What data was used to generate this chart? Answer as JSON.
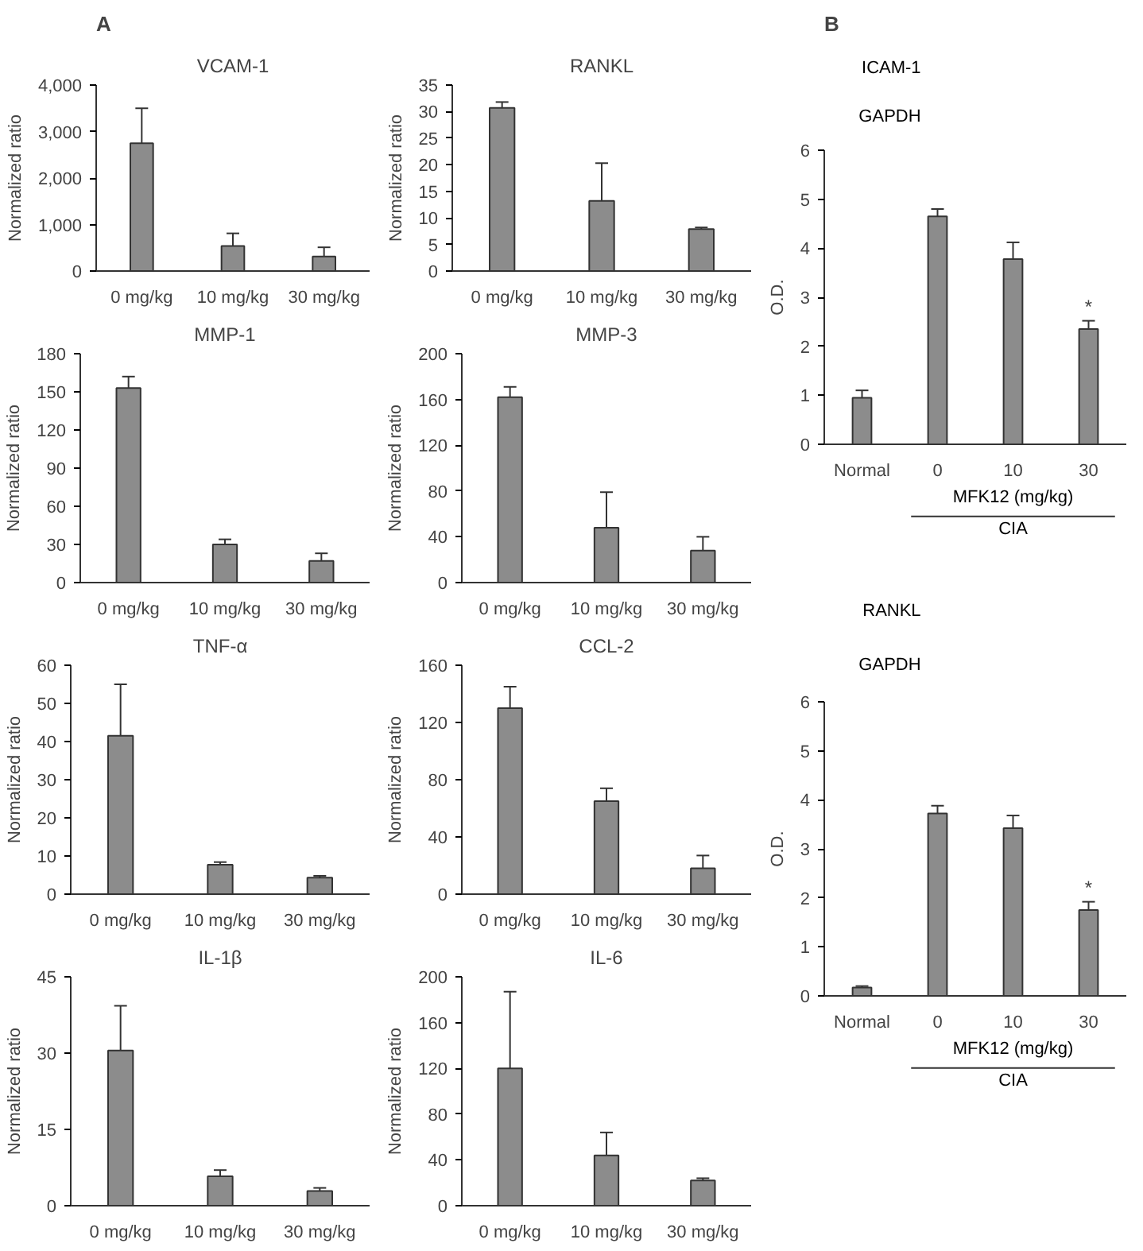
{
  "chart_data": [
    {
      "type": "bar",
      "title": "VCAM-1",
      "ylabel": "Normalized ratio",
      "categories": [
        "0 mg/kg",
        "10 mg/kg",
        "30 mg/kg"
      ],
      "values": [
        2750,
        540,
        310
      ],
      "errors": [
        [
          2750,
          3500
        ],
        [
          540,
          810
        ],
        [
          310,
          510
        ]
      ],
      "color": "#8c8c8c",
      "ylim": [
        0,
        4000
      ],
      "yticks": [
        0,
        {
          "value": 1000,
          "label": "1,000"
        },
        {
          "value": 2000,
          "label": "2,000"
        },
        {
          "value": 3000,
          "label": "3,000"
        },
        {
          "value": 4000,
          "label": "4,000"
        }
      ],
      "annotations": [
        "A"
      ]
    },
    {
      "type": "bar",
      "title": "RANKL",
      "ylabel": "Normalized ratio",
      "categories": [
        "0 mg/kg",
        "10 mg/kg",
        "30 mg/kg"
      ],
      "values": [
        30.7,
        13.2,
        7.9
      ],
      "errors": [
        [
          30.7,
          31.8
        ],
        [
          13.2,
          20.3
        ],
        [
          7.9,
          8.2
        ]
      ],
      "color": "#8c8c8c",
      "ylim": [
        0,
        35
      ],
      "yticks": [
        0,
        5,
        10,
        15,
        20,
        25,
        30,
        35
      ]
    },
    {
      "type": "bar",
      "title": "MMP-1",
      "ylabel": "Normalized ratio",
      "categories": [
        "0 mg/kg",
        "10 mg/kg",
        "30 mg/kg"
      ],
      "values": [
        153,
        30,
        17
      ],
      "errors": [
        [
          153,
          162
        ],
        [
          30,
          34
        ],
        [
          17,
          23
        ]
      ],
      "color": "#8c8c8c",
      "ylim": [
        0,
        180
      ],
      "yticks": [
        0,
        30,
        60,
        90,
        120,
        150,
        180
      ]
    },
    {
      "type": "bar",
      "title": "MMP-3",
      "ylabel": "Normalized ratio",
      "categories": [
        "0 mg/kg",
        "10 mg/kg",
        "30 mg/kg"
      ],
      "values": [
        162,
        48,
        28
      ],
      "errors": [
        [
          162,
          171
        ],
        [
          48,
          79
        ],
        [
          28,
          40
        ]
      ],
      "color": "#8c8c8c",
      "ylim": [
        0,
        200
      ],
      "yticks": [
        0,
        40,
        80,
        120,
        160,
        200
      ]
    },
    {
      "type": "bar",
      "title": "TNF-α",
      "ylabel": "Normalized ratio",
      "categories": [
        "0 mg/kg",
        "10 mg/kg",
        "30 mg/kg"
      ],
      "values": [
        41.5,
        7.7,
        4.3
      ],
      "errors": [
        [
          41.5,
          55
        ],
        [
          7.7,
          8.4
        ],
        [
          4.3,
          4.8
        ]
      ],
      "color": "#8c8c8c",
      "ylim": [
        0,
        60
      ],
      "yticks": [
        0,
        10,
        20,
        30,
        40,
        50,
        60
      ]
    },
    {
      "type": "bar",
      "title": "CCL-2",
      "ylabel": "Normalized ratio",
      "categories": [
        "0 mg/kg",
        "10 mg/kg",
        "30 mg/kg"
      ],
      "values": [
        130,
        65,
        18
      ],
      "errors": [
        [
          130,
          145
        ],
        [
          65,
          74
        ],
        [
          18,
          27
        ]
      ],
      "color": "#8c8c8c",
      "ylim": [
        0,
        160
      ],
      "yticks": [
        0,
        40,
        80,
        120,
        160
      ]
    },
    {
      "type": "bar",
      "title": "IL-1β",
      "ylabel": "Normalized ratio",
      "categories": [
        "0 mg/kg",
        "10 mg/kg",
        "30 mg/kg"
      ],
      "values": [
        30.5,
        5.8,
        2.9
      ],
      "errors": [
        [
          30.5,
          39.3
        ],
        [
          5.8,
          7
        ],
        [
          2.9,
          3.5
        ]
      ],
      "color": "#8c8c8c",
      "ylim": [
        0,
        45
      ],
      "yticks": [
        0,
        15,
        30,
        45
      ]
    },
    {
      "type": "bar",
      "title": "IL-6",
      "ylabel": "Normalized ratio",
      "categories": [
        "0 mg/kg",
        "10 mg/kg",
        "30 mg/kg"
      ],
      "values": [
        120,
        44,
        22
      ],
      "errors": [
        [
          120,
          187
        ],
        [
          44,
          64
        ],
        [
          22,
          24
        ]
      ],
      "color": "#8c8c8c",
      "ylim": [
        0,
        200
      ],
      "yticks": [
        0,
        40,
        80,
        120,
        160,
        200
      ]
    },
    {
      "type": "bar",
      "ylabel": "O.D.",
      "xlabel": "MFK12 (mg/kg)",
      "categories": [
        "Normal",
        "0",
        "10",
        "30"
      ],
      "values": [
        0.95,
        4.65,
        3.78,
        2.35
      ],
      "errors": [
        [
          0.95,
          1.1
        ],
        [
          4.65,
          4.8
        ],
        [
          3.78,
          4.12
        ],
        [
          2.35,
          2.52
        ]
      ],
      "color": "#8c8c8c",
      "ylim": [
        0,
        6
      ],
      "yticks": [
        0,
        1,
        2,
        3,
        4,
        5,
        6
      ],
      "annotations": [
        "B",
        "ICAM-1",
        "GAPDH",
        "CIA",
        {
          "text": "*",
          "x": "30",
          "y": 2.52
        }
      ]
    },
    {
      "type": "bar",
      "ylabel": "O.D.",
      "xlabel": "MFK12 (mg/kg)",
      "categories": [
        "Normal",
        "0",
        "10",
        "30"
      ],
      "values": [
        0.17,
        3.72,
        3.42,
        1.75
      ],
      "errors": [
        [
          0.17,
          0.2
        ],
        [
          3.72,
          3.88
        ],
        [
          3.42,
          3.68
        ],
        [
          1.75,
          1.92
        ]
      ],
      "color": "#8c8c8c",
      "ylim": [
        0,
        6
      ],
      "yticks": [
        0,
        1,
        2,
        3,
        4,
        5,
        6
      ],
      "annotations": [
        "RANKL",
        "GAPDH",
        "CIA",
        {
          "text": "*",
          "x": "30",
          "y": 1.92
        }
      ]
    }
  ]
}
